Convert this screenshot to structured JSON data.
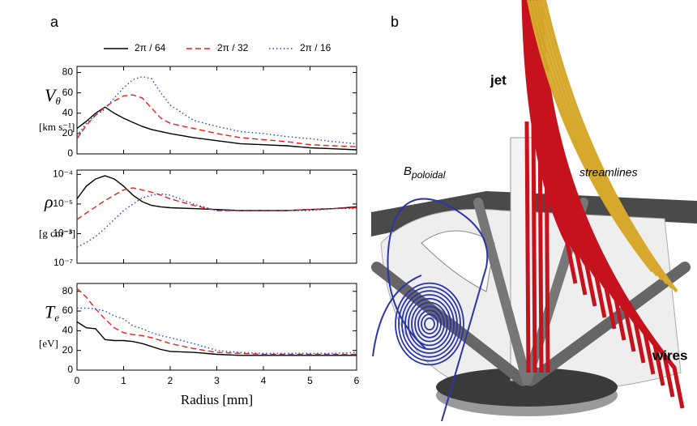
{
  "panel_a": {
    "label": "a"
  },
  "chart_data": [
    {
      "type": "line",
      "ylabel": {
        "symbol": "V",
        "subscript": "θ",
        "unit": "[km s⁻¹]"
      },
      "x": [
        0,
        0.2,
        0.4,
        0.6,
        0.8,
        1.0,
        1.2,
        1.4,
        1.6,
        1.8,
        2.0,
        2.5,
        3,
        3.5,
        4,
        4.5,
        5,
        5.5,
        6
      ],
      "series": [
        {
          "name": "2π / 64",
          "color": "#000000",
          "linestyle": "solid",
          "values": [
            25,
            32,
            40,
            46,
            40,
            35,
            31,
            27,
            24,
            22,
            20,
            16,
            13,
            10,
            9,
            8,
            6,
            5,
            4
          ]
        },
        {
          "name": "2π / 32",
          "color": "#e8211c",
          "linestyle": "dashed",
          "values": [
            15,
            28,
            38,
            46,
            52,
            57,
            58,
            55,
            45,
            35,
            30,
            25,
            20,
            16,
            14,
            12,
            9,
            8,
            7
          ]
        },
        {
          "name": "2π / 16",
          "color": "#2b3fc9",
          "linestyle": "dotted",
          "values": [
            18,
            30,
            38,
            44,
            55,
            65,
            73,
            76,
            74,
            60,
            48,
            33,
            27,
            22,
            20,
            17,
            15,
            12,
            10
          ]
        }
      ],
      "xlim": [
        0,
        6
      ],
      "xticks": [
        0,
        1,
        2,
        3,
        4,
        5,
        6
      ],
      "ylim": [
        0,
        86
      ],
      "yticks": [
        0,
        20,
        40,
        60,
        80
      ]
    },
    {
      "type": "line",
      "log_y": true,
      "ylabel": {
        "symbol": "ρ",
        "unit": "[g cm⁻³]"
      },
      "x": [
        0,
        0.2,
        0.4,
        0.6,
        0.8,
        1.0,
        1.2,
        1.4,
        1.6,
        1.8,
        2.0,
        2.5,
        3,
        3.5,
        4,
        4.5,
        5,
        5.5,
        6
      ],
      "series": [
        {
          "color": "#000000",
          "linestyle": "solid",
          "values": [
            1.5e-05,
            4e-05,
            7e-05,
            9e-05,
            7e-05,
            4e-05,
            2e-05,
            1.2e-05,
            9e-06,
            8e-06,
            7.5e-06,
            7e-06,
            6.5e-06,
            6e-06,
            6e-06,
            6e-06,
            6.5e-06,
            7e-06,
            8e-06
          ]
        },
        {
          "color": "#e8211c",
          "linestyle": "dashed",
          "values": [
            3e-06,
            5e-06,
            8e-06,
            1.3e-05,
            2e-05,
            3e-05,
            3.5e-05,
            3e-05,
            2.5e-05,
            2e-05,
            1.5e-05,
            9e-06,
            6e-06,
            6e-06,
            6e-06,
            6e-06,
            6.5e-06,
            7e-06,
            7.5e-06
          ]
        },
        {
          "color": "#2b3fc9",
          "linestyle": "dotted",
          "values": [
            3.5e-07,
            5e-07,
            8e-07,
            1.5e-06,
            3e-06,
            6e-06,
            1e-05,
            1.6e-05,
            2e-05,
            2.2e-05,
            2e-05,
            1e-05,
            6e-06,
            6e-06,
            6e-06,
            6e-06,
            6e-06,
            7e-06,
            7e-06
          ]
        }
      ],
      "xlim": [
        0,
        6
      ],
      "xticks": [
        0,
        1,
        2,
        3,
        4,
        5,
        6
      ],
      "ylim": [
        1e-07,
        0.00014
      ],
      "yticks": [
        {
          "value": 1e-07,
          "label": "10⁻⁷"
        },
        {
          "value": 1e-06,
          "label": "10⁻⁶"
        },
        {
          "value": 1e-05,
          "label": "10⁻⁵"
        },
        {
          "value": 0.0001,
          "label": "10⁻⁴"
        }
      ]
    },
    {
      "type": "line",
      "ylabel": {
        "symbol": "T",
        "subscript": "e",
        "unit": "[eV]"
      },
      "xlabel": "Radius [mm]",
      "xtick_labels": true,
      "x": [
        0,
        0.2,
        0.4,
        0.6,
        0.8,
        1.0,
        1.2,
        1.4,
        1.6,
        1.8,
        2.0,
        2.5,
        3,
        3.5,
        4,
        4.5,
        5,
        5.5,
        6
      ],
      "series": [
        {
          "color": "#000000",
          "linestyle": "solid",
          "values": [
            49,
            43,
            42,
            31,
            30,
            30,
            29,
            27,
            24,
            21,
            19,
            18,
            16,
            15,
            15,
            15,
            15,
            15,
            15
          ]
        },
        {
          "color": "#e8211c",
          "linestyle": "dashed",
          "values": [
            83,
            74,
            62,
            52,
            43,
            38,
            36,
            35,
            33,
            30,
            27,
            22,
            18,
            17,
            16,
            16,
            16,
            16,
            16
          ]
        },
        {
          "color": "#2b3fc9",
          "linestyle": "dotted",
          "values": [
            63,
            63,
            62,
            60,
            55,
            52,
            45,
            42,
            38,
            35,
            33,
            27,
            20,
            18,
            17,
            17,
            17,
            17,
            18
          ]
        }
      ],
      "xlim": [
        0,
        6
      ],
      "xticks": [
        0,
        1,
        2,
        3,
        4,
        5,
        6
      ],
      "ylim": [
        0,
        88
      ],
      "yticks": [
        0,
        20,
        40,
        60,
        80
      ]
    }
  ],
  "panel_b": {
    "label": "b",
    "annotations": [
      "jet",
      "streamlines",
      "wires"
    ],
    "field_label": {
      "symbol": "B",
      "subscript": "poloidal"
    }
  }
}
